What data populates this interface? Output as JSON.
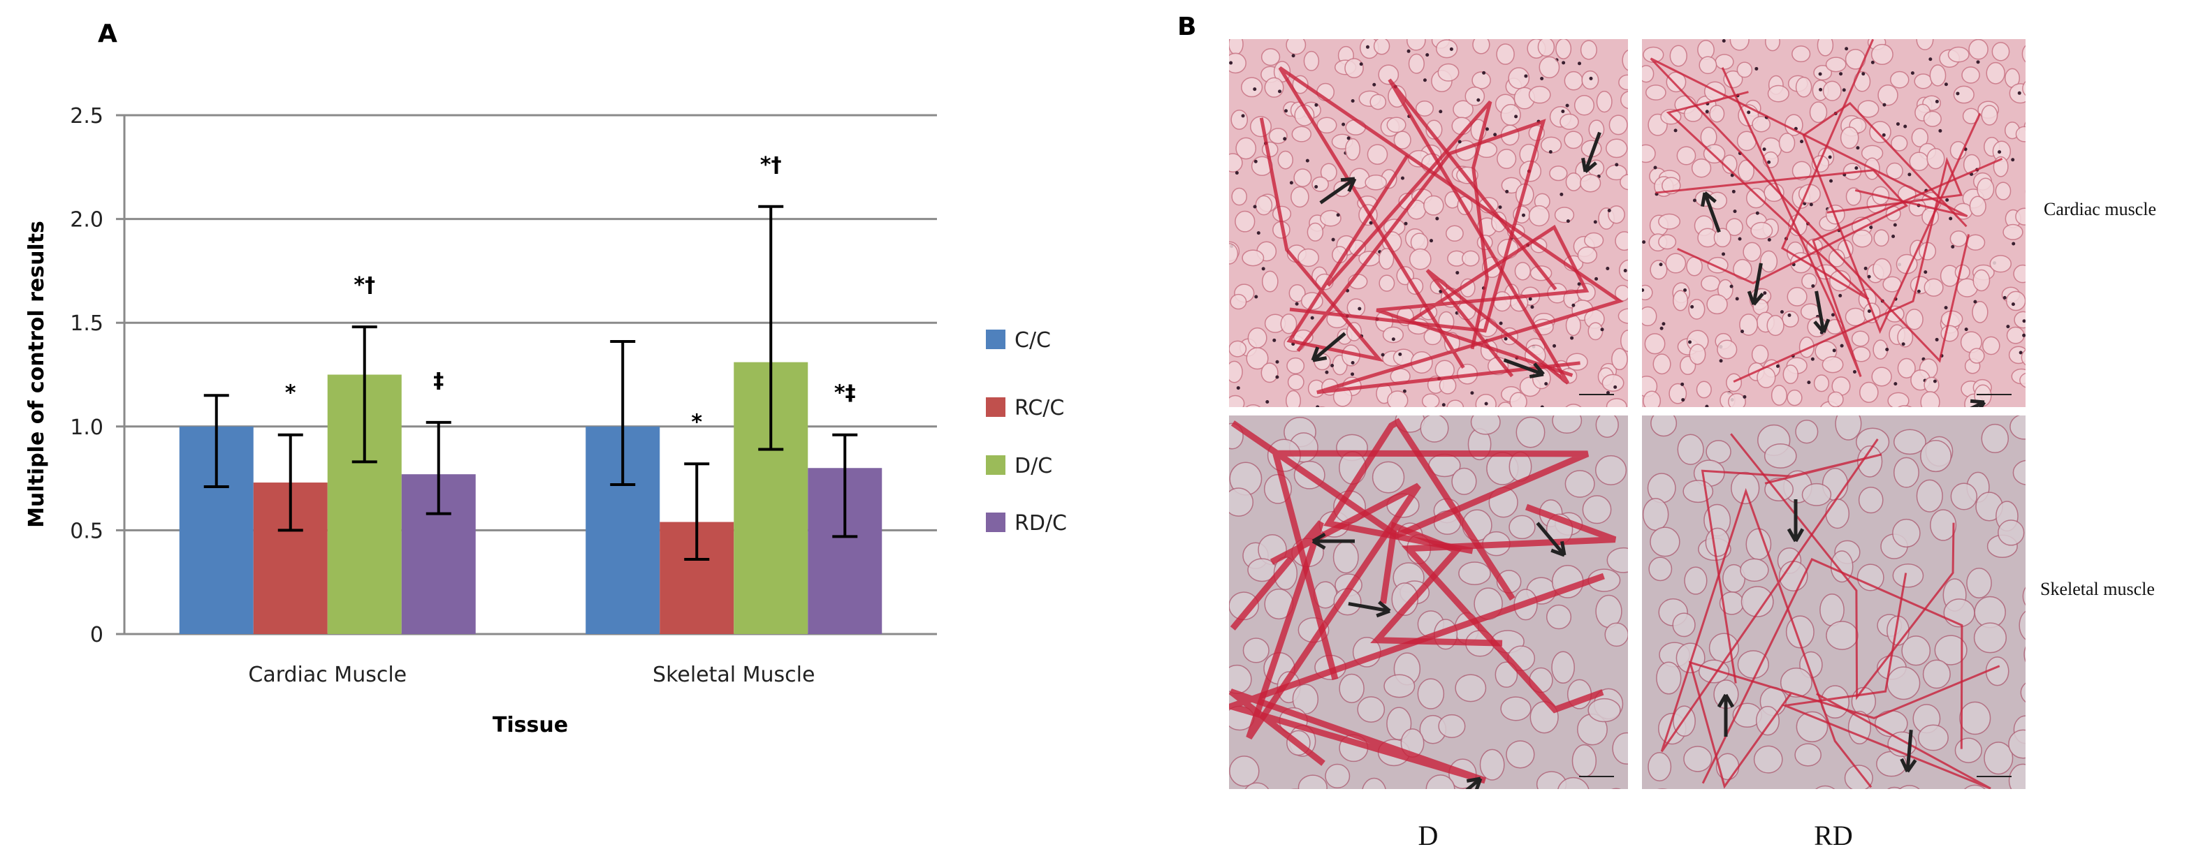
{
  "panel_a_label": "A",
  "panel_b_label": "B",
  "chart_data": {
    "type": "bar",
    "title": "",
    "xlabel": "Tissue",
    "ylabel": "Multiple of control results",
    "ylim": [
      0,
      2.5
    ],
    "yticks": [
      "0",
      "0.5",
      "1.0",
      "1.5",
      "2.0",
      "2.5"
    ],
    "grid": true,
    "legend_position": "right",
    "categories": [
      "Cardiac Muscle",
      "Skeletal Muscle"
    ],
    "series": [
      {
        "name": "C/C",
        "color": "#4F81BD",
        "values": [
          1.0,
          1.0
        ],
        "err_low": [
          0.71,
          0.72
        ],
        "err_high": [
          1.15,
          1.41
        ],
        "annotations": [
          "",
          ""
        ]
      },
      {
        "name": "RC/C",
        "color": "#C0504D",
        "values": [
          0.73,
          0.54
        ],
        "err_low": [
          0.5,
          0.36
        ],
        "err_high": [
          0.96,
          0.82
        ],
        "annotations": [
          "*",
          "*"
        ]
      },
      {
        "name": "D/C",
        "color": "#9BBB59",
        "values": [
          1.25,
          1.31
        ],
        "err_low": [
          0.83,
          0.89
        ],
        "err_high": [
          1.48,
          2.06
        ],
        "annotations": [
          "*†",
          "*†"
        ]
      },
      {
        "name": "RD/C",
        "color": "#8064A2",
        "values": [
          0.77,
          0.8
        ],
        "err_low": [
          0.58,
          0.47
        ],
        "err_high": [
          1.02,
          0.96
        ],
        "annotations": [
          "‡",
          "*‡"
        ]
      }
    ]
  },
  "micrographs": {
    "row_labels": [
      "Cardiac muscle",
      "Skeletal muscle"
    ],
    "column_labels": [
      "D",
      "RD"
    ],
    "stain_color": "#C8203A",
    "background_colors": {
      "cardiac": "#E8BCC4",
      "skeletal": "#C9B9C0"
    }
  }
}
